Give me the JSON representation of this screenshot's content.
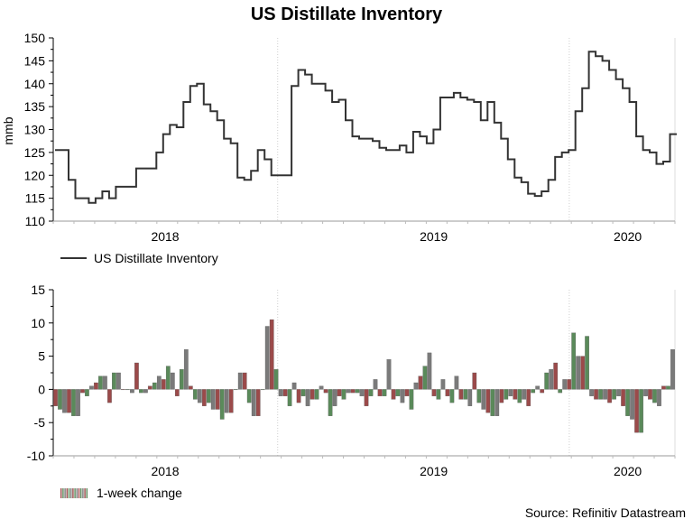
{
  "chart_data": [
    {
      "type": "line",
      "title": "US Distillate Inventory",
      "ylabel": "mmb",
      "xlabel": "",
      "ylim": [
        110,
        150
      ],
      "yticks": [
        110,
        115,
        120,
        125,
        130,
        135,
        140,
        145,
        150
      ],
      "x_tick_labels": [
        "2018",
        "2019",
        "2020"
      ],
      "legend": "US Distillate Inventory",
      "legend_position": "bottom-left",
      "x_range": [
        "2017-09",
        "2020-03"
      ],
      "series": [
        {
          "name": "US Distillate Inventory",
          "values": [
            125.5,
            125.5,
            119,
            115,
            115,
            114,
            115,
            116.5,
            115,
            117.5,
            117.5,
            117.5,
            121.5,
            121.5,
            121.5,
            125,
            129,
            131,
            130.5,
            136,
            139.5,
            140,
            135.5,
            134,
            132,
            128,
            127,
            119.5,
            119,
            121,
            125.5,
            123.5,
            120,
            120,
            120,
            139.5,
            143,
            142,
            140,
            140,
            138.5,
            136,
            136.5,
            132,
            128.5,
            128,
            128,
            127.5,
            126,
            125.5,
            125.5,
            126.5,
            125,
            129.5,
            128.5,
            127,
            130,
            137,
            137,
            138,
            137,
            136.5,
            136,
            132,
            136,
            131.5,
            128,
            123.5,
            119.5,
            118.5,
            116,
            115.5,
            116.5,
            119,
            124,
            125,
            125.5,
            134,
            139,
            147,
            146,
            145,
            143,
            141,
            139,
            136,
            128.5,
            125.5,
            125,
            122.5,
            123,
            129
          ]
        }
      ]
    },
    {
      "type": "bar",
      "title": "",
      "ylabel": "",
      "xlabel": "",
      "ylim": [
        -10,
        15
      ],
      "yticks": [
        -10,
        -5,
        0,
        5,
        10,
        15
      ],
      "x_tick_labels": [
        "2018",
        "2019",
        "2020"
      ],
      "legend": "1-week change",
      "legend_position": "bottom-left",
      "series": [
        {
          "name": "1-week change",
          "values": [
            -2.5,
            -3,
            -3.5,
            -3.5,
            -4,
            -4,
            -0.5,
            -1,
            0.5,
            1,
            2,
            2,
            -2,
            2.5,
            2.5,
            0,
            0,
            -0.5,
            4,
            -0.5,
            -0.5,
            0.5,
            1,
            2,
            1.5,
            3.5,
            2.5,
            -1,
            3,
            6,
            0.5,
            -1.5,
            -2,
            -2.5,
            -2,
            -3,
            -3,
            -4.5,
            -3.5,
            -3.5,
            0,
            2.5,
            2.5,
            -2,
            -4,
            -4,
            0,
            9.5,
            10.5,
            3,
            -1,
            -1,
            -2.5,
            1,
            -2,
            -1,
            -2.5,
            -1.5,
            -1.5,
            0.5,
            -0.5,
            -4,
            -2.5,
            -1,
            -1.5,
            -0.5,
            -0.5,
            -0.5,
            -1,
            -2.5,
            -1,
            1.5,
            -1,
            -1,
            4.5,
            -1.5,
            -1,
            -2,
            -1,
            -3,
            1,
            2,
            3.5,
            5.5,
            -1,
            -1.5,
            1.5,
            -1,
            -2,
            2,
            -1.5,
            -1.5,
            -2.5,
            2.5,
            -2,
            -3,
            -3.5,
            -4,
            -4,
            -2,
            -1.5,
            -1,
            -1.5,
            -2,
            -1.5,
            -2.5,
            -0.5,
            0.5,
            -0.5,
            2.5,
            3,
            4,
            -0.5,
            1.5,
            1.5,
            8.5,
            5,
            5,
            8,
            -1,
            -1.5,
            -1.5,
            -1.5,
            -2,
            -1.5,
            -1,
            -2.5,
            -4,
            -4.5,
            -6.5,
            -6.5,
            -1,
            -1.5,
            -2,
            -2.5,
            0.5,
            0.5,
            6
          ]
        }
      ]
    }
  ],
  "source_text": "Source: Refinitiv Datastream"
}
